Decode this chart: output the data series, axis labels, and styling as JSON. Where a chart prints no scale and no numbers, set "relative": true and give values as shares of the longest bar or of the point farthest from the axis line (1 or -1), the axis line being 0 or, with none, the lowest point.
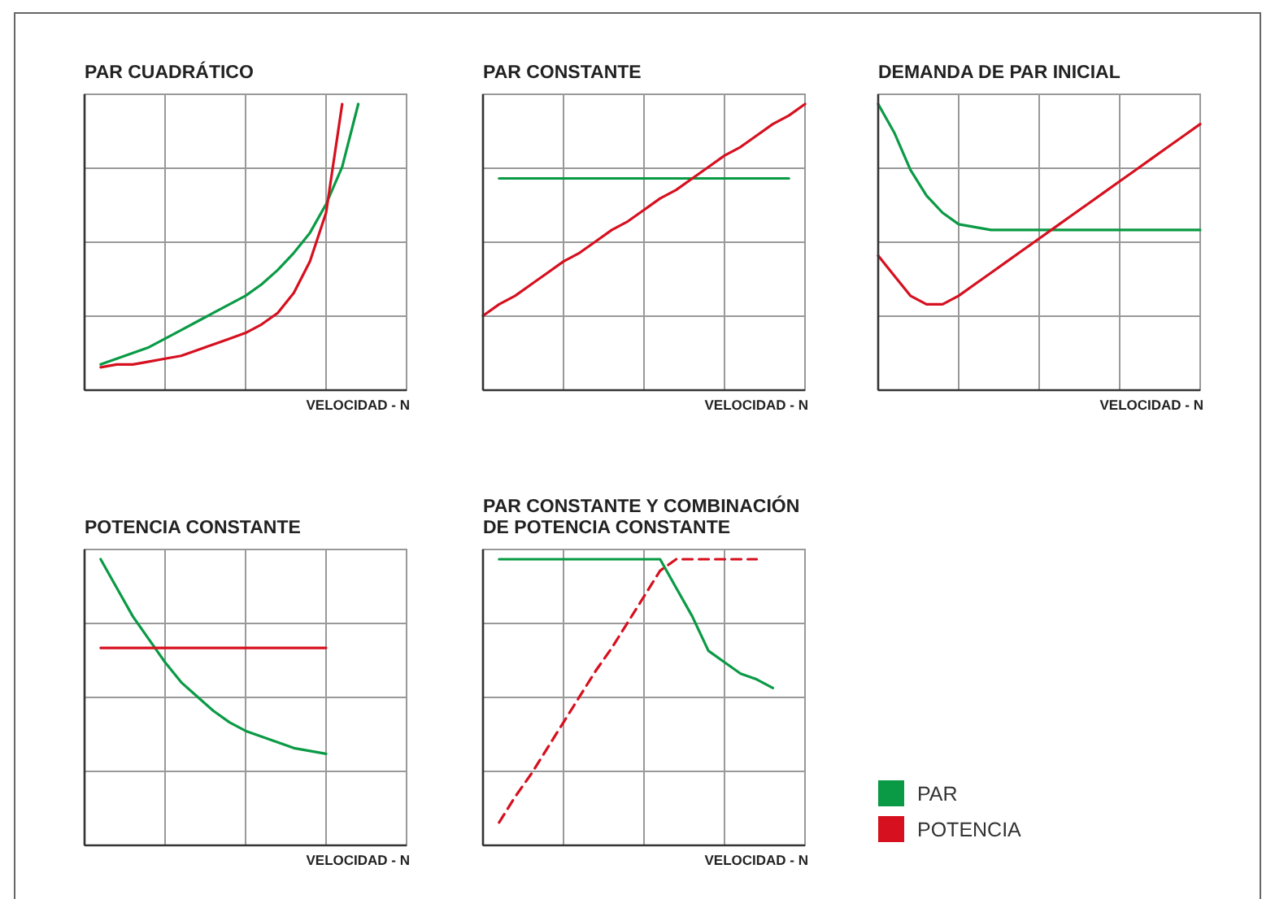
{
  "chart_data": [
    {
      "type": "line",
      "title": "PAR CUADRÁTICO",
      "xlabel": "VELOCIDAD - N",
      "relative": true,
      "categories": [
        null,
        null,
        null,
        null,
        null,
        null,
        null,
        null,
        null,
        null,
        null,
        null,
        null,
        null,
        null,
        null,
        null,
        null,
        null,
        null,
        null
      ],
      "grid": true,
      "series": [
        {
          "color": "#0a9a45",
          "values": [
            null,
            0.09,
            0.11,
            0.13,
            0.15,
            0.18,
            0.21,
            0.24,
            0.27,
            0.3,
            0.33,
            0.37,
            0.42,
            0.48,
            0.55,
            0.65,
            0.78,
            1,
            null,
            null,
            null
          ]
        },
        {
          "color": "#d6101f",
          "values": [
            null,
            0.08,
            0.09,
            0.09,
            0.1,
            0.11,
            0.12,
            0.14,
            0.16,
            0.18,
            0.2,
            0.23,
            0.27,
            0.34,
            0.45,
            0.62,
            1,
            null,
            null,
            null,
            null
          ]
        }
      ]
    },
    {
      "type": "line",
      "title": "PAR CONSTANTE",
      "xlabel": "VELOCIDAD - N",
      "relative": true,
      "categories": [
        null,
        null,
        null,
        null,
        null,
        null,
        null,
        null,
        null,
        null,
        null,
        null,
        null,
        null,
        null,
        null,
        null,
        null,
        null,
        null,
        null
      ],
      "grid": true,
      "series": [
        {
          "color": "#0a9a45",
          "values": [
            null,
            0.74,
            0.74,
            0.74,
            0.74,
            0.74,
            0.74,
            0.74,
            0.74,
            0.74,
            0.74,
            0.74,
            0.74,
            0.74,
            0.74,
            0.74,
            0.74,
            0.74,
            0.74,
            0.74,
            null
          ]
        },
        {
          "color": "#d6101f",
          "values": [
            0.26,
            0.3,
            0.33,
            0.37,
            0.41,
            0.45,
            0.48,
            0.52,
            0.56,
            0.59,
            0.63,
            0.67,
            0.7,
            0.74,
            0.78,
            0.82,
            0.85,
            0.89,
            0.93,
            0.96,
            1
          ]
        }
      ]
    },
    {
      "type": "line",
      "title": "DEMANDA DE PAR INICIAL",
      "xlabel": "VELOCIDAD - N",
      "relative": true,
      "categories": [
        null,
        null,
        null,
        null,
        null,
        null,
        null,
        null,
        null,
        null,
        null,
        null,
        null,
        null,
        null,
        null,
        null,
        null,
        null,
        null,
        null
      ],
      "grid": true,
      "series": [
        {
          "color": "#0a9a45",
          "values": [
            1,
            0.9,
            0.77,
            0.68,
            0.62,
            0.58,
            0.57,
            0.56,
            0.56,
            0.56,
            0.56,
            0.56,
            0.56,
            0.56,
            0.56,
            0.56,
            0.56,
            0.56,
            0.56,
            0.56,
            0.56
          ]
        },
        {
          "color": "#d6101f",
          "values": [
            0.47,
            0.4,
            0.33,
            0.3,
            0.3,
            0.33,
            0.37,
            0.41,
            0.45,
            0.49,
            0.53,
            0.57,
            0.61,
            0.65,
            0.69,
            0.73,
            0.77,
            0.81,
            0.85,
            0.89,
            0.93
          ]
        }
      ]
    },
    {
      "type": "line",
      "title": "POTENCIA CONSTANTE",
      "xlabel": "VELOCIDAD - N",
      "relative": true,
      "categories": [
        null,
        null,
        null,
        null,
        null,
        null,
        null,
        null,
        null,
        null,
        null,
        null,
        null,
        null,
        null,
        null,
        null,
        null,
        null,
        null,
        null
      ],
      "grid": true,
      "series": [
        {
          "color": "#0a9a45",
          "values": [
            null,
            1,
            0.9,
            0.8,
            0.72,
            0.64,
            0.57,
            0.52,
            0.47,
            0.43,
            0.4,
            0.38,
            0.36,
            0.34,
            0.33,
            0.32,
            null,
            null,
            null,
            null,
            null
          ]
        },
        {
          "color": "#d6101f",
          "values": [
            null,
            0.69,
            0.69,
            0.69,
            0.69,
            0.69,
            0.69,
            0.69,
            0.69,
            0.69,
            0.69,
            0.69,
            0.69,
            0.69,
            0.69,
            0.69,
            null,
            null,
            null,
            null,
            null
          ]
        }
      ]
    },
    {
      "type": "line",
      "title": "PAR CONSTANTE Y COMBINACIÓN\nDE POTENCIA CONSTANTE",
      "xlabel": "VELOCIDAD - N",
      "relative": true,
      "categories": [
        null,
        null,
        null,
        null,
        null,
        null,
        null,
        null,
        null,
        null,
        null,
        null,
        null,
        null,
        null,
        null,
        null,
        null,
        null,
        null,
        null
      ],
      "grid": true,
      "legend": "right",
      "series": [
        {
          "name": "PAR",
          "color": "#0a9a45",
          "values": [
            null,
            1,
            1,
            1,
            1,
            1,
            1,
            1,
            1,
            1,
            1,
            1,
            0.9,
            0.8,
            0.68,
            0.64,
            0.6,
            0.58,
            0.55,
            null,
            null
          ]
        },
        {
          "name": "POTENCIA",
          "color": "#d6101f",
          "line_style": "dashed",
          "values": [
            null,
            0.08,
            0.17,
            0.25,
            0.34,
            0.43,
            0.52,
            0.61,
            0.69,
            0.78,
            0.87,
            0.96,
            1,
            1,
            1,
            1,
            1,
            1,
            null,
            null,
            null
          ]
        }
      ]
    }
  ]
}
